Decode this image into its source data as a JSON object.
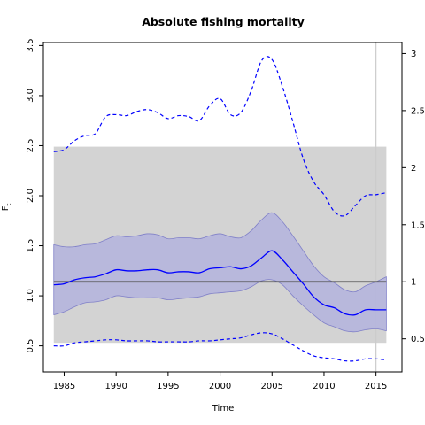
{
  "chart_data": {
    "type": "line",
    "title": "Absolute fishing mortality",
    "xlabel": "Time",
    "ylabel": "F",
    "ylabel_subscript": "t",
    "xlim": [
      1983,
      2017.5
    ],
    "ylim": [
      0.24,
      3.53
    ],
    "x_ticks": [
      1985,
      1990,
      1995,
      2000,
      2005,
      2010,
      2015
    ],
    "x_tick_labels": [
      "1985",
      "1990",
      "1995",
      "2000",
      "2005",
      "2010",
      "2015"
    ],
    "y_ticks": [
      0.5,
      1.0,
      1.5,
      2.0,
      2.5,
      3.0,
      3.5
    ],
    "y_tick_labels": [
      "0.5",
      "1.0",
      "1.5",
      "2.0",
      "2.5",
      "3.0",
      "3.5"
    ],
    "right_axis_ticks": [
      0.5,
      1,
      1.5,
      2,
      2.5,
      3
    ],
    "right_axis_tick_labels": [
      "0.5",
      "1",
      "1.5",
      "2",
      "2.5",
      "3"
    ],
    "right_axis_scale": 1.14,
    "colors": {
      "estimate": "#0000ff",
      "band": "#b3b3dd",
      "band_edge": "#8080c8",
      "reference_region": "#d3d3d3",
      "reference_line": "#555555",
      "vline": "#cccccc"
    },
    "reference_region": {
      "x": [
        1984,
        2016
      ],
      "y": [
        0.53,
        2.49
      ]
    },
    "reference_line": {
      "y": 1.14,
      "x": [
        1984,
        2016
      ]
    },
    "vertical_line": {
      "x": 2015
    },
    "series": [
      {
        "role": "estimate",
        "style": "solid",
        "x": [
          1984,
          1985,
          1986,
          1987,
          1988,
          1989,
          1990,
          1991,
          1992,
          1993,
          1994,
          1995,
          1996,
          1997,
          1998,
          1999,
          2000,
          2001,
          2002,
          2003,
          2004,
          2005,
          2006,
          2007,
          2008,
          2009,
          2010,
          2011,
          2012,
          2013,
          2014,
          2015,
          2016
        ],
        "y": [
          1.11,
          1.12,
          1.16,
          1.18,
          1.19,
          1.22,
          1.26,
          1.25,
          1.25,
          1.26,
          1.26,
          1.23,
          1.24,
          1.24,
          1.23,
          1.27,
          1.28,
          1.29,
          1.27,
          1.3,
          1.38,
          1.45,
          1.36,
          1.24,
          1.12,
          0.99,
          0.91,
          0.88,
          0.82,
          0.81,
          0.86,
          0.86,
          0.86
        ]
      },
      {
        "role": "upper",
        "style": "dashed",
        "x": [
          1984,
          1985,
          1986,
          1987,
          1988,
          1989,
          1990,
          1991,
          1992,
          1993,
          1994,
          1995,
          1996,
          1997,
          1998,
          1999,
          2000,
          2001,
          2002,
          2003,
          2004,
          2005,
          2006,
          2007,
          2008,
          2009,
          2010,
          2011,
          2012,
          2013,
          2014,
          2015,
          2016
        ],
        "y": [
          2.44,
          2.46,
          2.55,
          2.6,
          2.62,
          2.79,
          2.81,
          2.8,
          2.84,
          2.86,
          2.83,
          2.77,
          2.8,
          2.79,
          2.75,
          2.9,
          2.97,
          2.81,
          2.83,
          3.05,
          3.35,
          3.36,
          3.09,
          2.74,
          2.37,
          2.14,
          2.01,
          1.84,
          1.8,
          1.9,
          2.0,
          2.01,
          2.03
        ]
      },
      {
        "role": "lower",
        "style": "dashed",
        "x": [
          1984,
          1985,
          1986,
          1987,
          1988,
          1989,
          1990,
          1991,
          1992,
          1993,
          1994,
          1995,
          1996,
          1997,
          1998,
          1999,
          2000,
          2001,
          2002,
          2003,
          2004,
          2005,
          2006,
          2007,
          2008,
          2009,
          2010,
          2011,
          2012,
          2013,
          2014,
          2015,
          2016
        ],
        "y": [
          0.5,
          0.5,
          0.53,
          0.54,
          0.55,
          0.56,
          0.56,
          0.55,
          0.55,
          0.55,
          0.54,
          0.54,
          0.54,
          0.54,
          0.55,
          0.55,
          0.56,
          0.57,
          0.58,
          0.61,
          0.63,
          0.62,
          0.57,
          0.51,
          0.45,
          0.4,
          0.38,
          0.37,
          0.35,
          0.35,
          0.37,
          0.37,
          0.36
        ]
      },
      {
        "role": "band_upper",
        "style": "fill",
        "x": [
          1984,
          1985,
          1986,
          1987,
          1988,
          1989,
          1990,
          1991,
          1992,
          1993,
          1994,
          1995,
          1996,
          1997,
          1998,
          1999,
          2000,
          2001,
          2002,
          2003,
          2004,
          2005,
          2006,
          2007,
          2008,
          2009,
          2010,
          2011,
          2012,
          2013,
          2014,
          2015,
          2016
        ],
        "y": [
          1.51,
          1.49,
          1.49,
          1.51,
          1.52,
          1.56,
          1.6,
          1.59,
          1.6,
          1.62,
          1.61,
          1.57,
          1.58,
          1.58,
          1.57,
          1.6,
          1.62,
          1.59,
          1.58,
          1.65,
          1.76,
          1.83,
          1.74,
          1.6,
          1.45,
          1.3,
          1.19,
          1.13,
          1.06,
          1.04,
          1.1,
          1.14,
          1.19
        ]
      },
      {
        "role": "band_lower",
        "style": "fill",
        "x": [
          1984,
          1985,
          1986,
          1987,
          1988,
          1989,
          1990,
          1991,
          1992,
          1993,
          1994,
          1995,
          1996,
          1997,
          1998,
          1999,
          2000,
          2001,
          2002,
          2003,
          2004,
          2005,
          2006,
          2007,
          2008,
          2009,
          2010,
          2011,
          2012,
          2013,
          2014,
          2015,
          2016
        ],
        "y": [
          0.81,
          0.84,
          0.89,
          0.93,
          0.94,
          0.96,
          1.0,
          0.99,
          0.98,
          0.98,
          0.98,
          0.96,
          0.97,
          0.98,
          0.99,
          1.02,
          1.03,
          1.04,
          1.05,
          1.09,
          1.15,
          1.16,
          1.11,
          1.0,
          0.9,
          0.81,
          0.73,
          0.69,
          0.65,
          0.64,
          0.66,
          0.67,
          0.65
        ]
      }
    ]
  }
}
